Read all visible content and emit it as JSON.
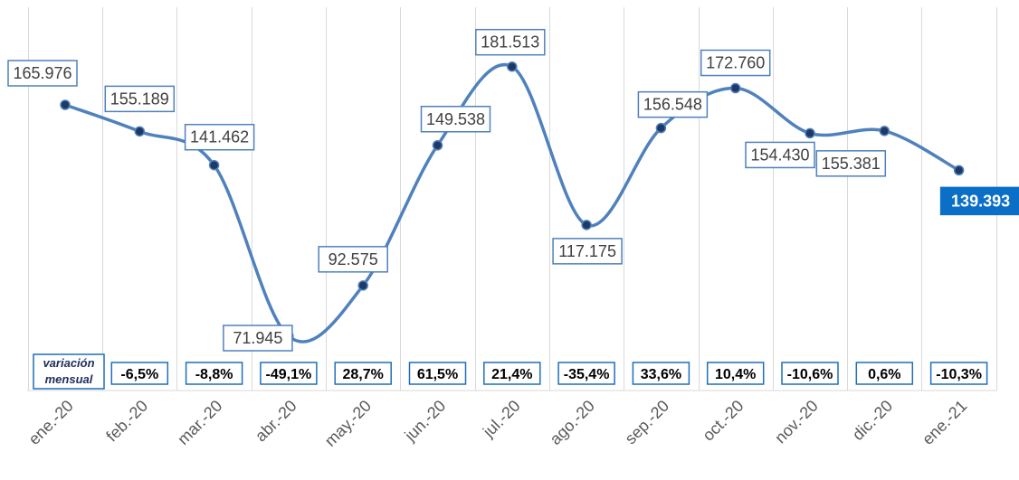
{
  "chart_data": {
    "type": "line",
    "categories": [
      "ene.-20",
      "feb.-20",
      "mar.-20",
      "abr.-20",
      "may.-20",
      "jun.-20",
      "jul.-20",
      "ago.-20",
      "sep.-20",
      "oct.-20",
      "nov.-20",
      "dic.-20",
      "ene.-21"
    ],
    "values": [
      165976,
      155189,
      141462,
      71945,
      92575,
      149538,
      181513,
      117175,
      156548,
      172760,
      154430,
      155381,
      139393
    ],
    "value_labels": [
      "165.976",
      "155.189",
      "141.462",
      "71.945",
      "92.575",
      "149.538",
      "181.513",
      "117.175",
      "156.548",
      "172.760",
      "154.430",
      "155.381",
      "139.393"
    ],
    "variation_title_line1": "variación",
    "variation_title_line2": "mensual",
    "variation": [
      "-6,5%",
      "-8,8%",
      "-49,1%",
      "28,7%",
      "61,5%",
      "21,4%",
      "-35,4%",
      "33,6%",
      "10,4%",
      "-10,6%",
      "0,6%",
      "-10,3%"
    ],
    "line_color": "#4f81bd",
    "point_color": "#1f3864",
    "highlight_color": "#0b6fc7",
    "grid": "vertical"
  }
}
